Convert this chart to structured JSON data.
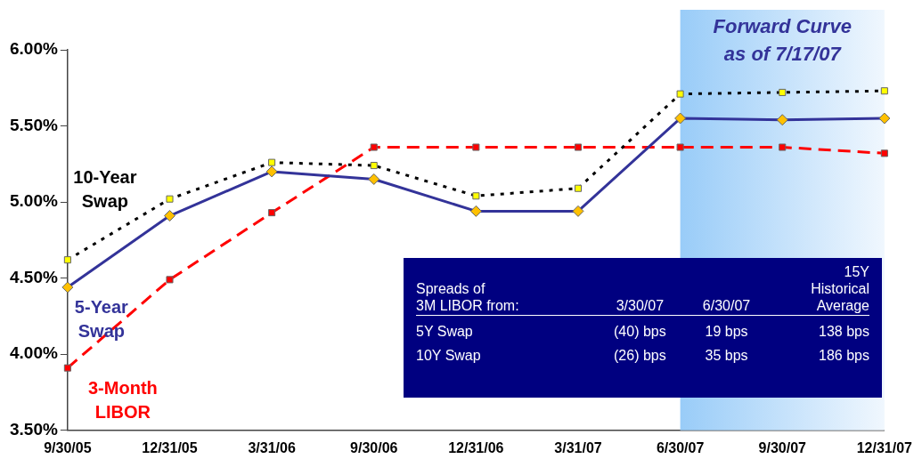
{
  "chart_data": {
    "type": "line",
    "categories": [
      "9/30/05",
      "12/31/05",
      "3/31/06",
      "9/30/06",
      "12/31/06",
      "3/31/07",
      "6/30/07",
      "9/30/07",
      "12/31/07"
    ],
    "series": [
      {
        "name": "10-Year Swap",
        "color": "#000000",
        "line_style": "dotted",
        "marker": "square",
        "colors": [
          "#ffff00",
          "#ffff00",
          "#ffff00",
          "#ffff00",
          "#ffff00",
          "#ffff00",
          "#ffff00",
          "#ffff00",
          "#ffff00"
        ],
        "values": [
          4.62,
          5.02,
          5.26,
          5.24,
          5.04,
          5.09,
          5.71,
          5.72,
          5.73
        ]
      },
      {
        "name": "5-Year Swap",
        "color": "#333399",
        "line_style": "solid",
        "marker": "diamond",
        "colors": [
          "#ffc000",
          "#ffc000",
          "#ffc000",
          "#ffc000",
          "#ffc000",
          "#ffc000",
          "#ffc000",
          "#ffc000",
          "#ffc000"
        ],
        "values": [
          4.44,
          4.91,
          5.2,
          5.15,
          4.94,
          4.94,
          5.55,
          5.54,
          5.55
        ]
      },
      {
        "name": "3-Month LIBOR",
        "color": "#ff0000",
        "line_style": "dashed",
        "marker": "square",
        "colors": [
          "#ff0000",
          "#ff0000",
          "#ff0000",
          "#ff0000",
          "#ff0000",
          "#ff0000",
          "#ff0000",
          "#ff0000",
          "#ff0000"
        ],
        "values": [
          3.91,
          4.49,
          4.93,
          5.36,
          5.36,
          5.36,
          5.36,
          5.36,
          5.32
        ]
      }
    ],
    "ylim": [
      3.5,
      6
    ],
    "yticks": [
      {
        "value": 3.5,
        "label": "3.50%"
      },
      {
        "value": 4,
        "label": "4.00%"
      },
      {
        "value": 4.5,
        "label": "4.50%"
      },
      {
        "value": 5,
        "label": "5.00%"
      },
      {
        "value": 5.5,
        "label": "5.50%"
      },
      {
        "value": 6,
        "label": "6.00%"
      }
    ],
    "bands": [
      {
        "axis": "x",
        "from": "6/30/07",
        "to": "12/31/07",
        "label": "Forward Curve\nas of 7/17/07",
        "color": "#99ccf8"
      }
    ],
    "annotations": [
      "Spreads of\n3M LIBOR from:",
      "3/30/07",
      "6/30/07",
      "15Y\nHistorical\nAverage",
      "5Y Swap",
      "(40) bps",
      "19 bps",
      "138 bps",
      "10Y Swap",
      "(26) bps",
      "35 bps",
      "186 bps"
    ],
    "grid": false,
    "legend": false
  }
}
